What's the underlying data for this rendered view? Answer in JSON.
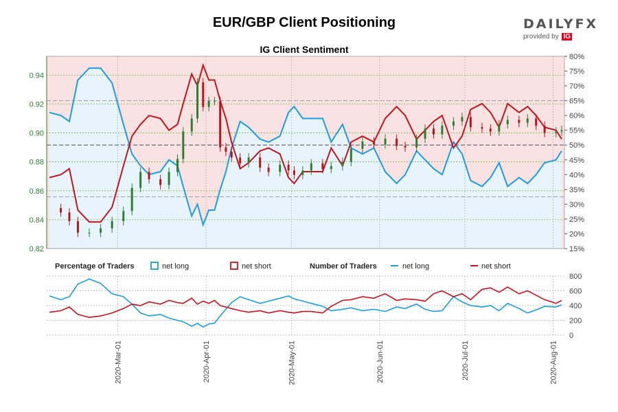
{
  "header": {
    "title": "EUR/GBP Client Positioning",
    "logo_text": "DAILYFX",
    "logo_sub": "provided by",
    "logo_ig": "IG"
  },
  "colors": {
    "long": "#1e9bdc",
    "short": "#c0141e",
    "candle_up": "#2e7d32",
    "candle_down": "#b5161c",
    "long_fill": "#e8f4fb",
    "short_fill": "#fbe2e2",
    "grid": "#7ab648",
    "left_axis": "#2e7d32"
  },
  "chart_data": [
    {
      "type": "candlestick_with_sentiment",
      "title": "IG Client Sentiment",
      "pair": "EUR/GBP",
      "y_left_ticks": [
        0.82,
        0.84,
        0.86,
        0.88,
        0.9,
        0.92,
        0.94
      ],
      "y_left_range": [
        0.82,
        0.953
      ],
      "y_right_ticks": [
        "15%",
        "20%",
        "25%",
        "30%",
        "35%",
        "40%",
        "45%",
        "50%",
        "55%",
        "60%",
        "65%",
        "70%",
        "75%",
        "80%"
      ],
      "y_right_range": [
        15,
        80
      ],
      "reference_lines_pct": [
        50,
        65,
        32.5
      ],
      "x_date_range": [
        "2020-02-06",
        "2020-08-04"
      ],
      "x_ticks": [
        "2020-Mar-01",
        "2020-Apr-01",
        "2020-May-01",
        "2020-Jun-01",
        "2020-Jul-01",
        "2020-Aug-01"
      ],
      "close_series": [
        [
          "2020-02-06",
          0.848
        ],
        [
          "2020-02-10",
          0.845
        ],
        [
          "2020-02-13",
          0.839
        ],
        [
          "2020-02-16",
          0.831
        ],
        [
          "2020-02-20",
          0.831
        ],
        [
          "2020-02-24",
          0.834
        ],
        [
          "2020-02-28",
          0.839
        ],
        [
          "2020-03-03",
          0.846
        ],
        [
          "2020-03-06",
          0.862
        ],
        [
          "2020-03-09",
          0.873
        ],
        [
          "2020-03-12",
          0.868
        ],
        [
          "2020-03-16",
          0.864
        ],
        [
          "2020-03-19",
          0.873
        ],
        [
          "2020-03-22",
          0.882
        ],
        [
          "2020-03-24",
          0.901
        ],
        [
          "2020-03-27",
          0.91
        ],
        [
          "2020-03-29",
          0.935
        ],
        [
          "2020-03-31",
          0.918
        ],
        [
          "2020-04-02",
          0.922
        ],
        [
          "2020-04-04",
          0.922
        ],
        [
          "2020-04-06",
          0.89
        ],
        [
          "2020-04-08",
          0.887
        ],
        [
          "2020-04-10",
          0.883
        ],
        [
          "2020-04-13",
          0.879
        ],
        [
          "2020-04-16",
          0.883
        ],
        [
          "2020-04-20",
          0.876
        ],
        [
          "2020-04-23",
          0.873
        ],
        [
          "2020-04-27",
          0.878
        ],
        [
          "2020-04-30",
          0.874
        ],
        [
          "2020-05-02",
          0.871
        ],
        [
          "2020-05-05",
          0.874
        ],
        [
          "2020-05-08",
          0.879
        ],
        [
          "2020-05-12",
          0.875
        ],
        [
          "2020-05-15",
          0.877
        ],
        [
          "2020-05-19",
          0.88
        ],
        [
          "2020-05-22",
          0.889
        ],
        [
          "2020-05-26",
          0.894
        ],
        [
          "2020-05-30",
          0.892
        ],
        [
          "2020-06-03",
          0.896
        ],
        [
          "2020-06-07",
          0.891
        ],
        [
          "2020-06-10",
          0.89
        ],
        [
          "2020-06-14",
          0.896
        ],
        [
          "2020-06-17",
          0.903
        ],
        [
          "2020-06-20",
          0.899
        ],
        [
          "2020-06-23",
          0.905
        ],
        [
          "2020-06-27",
          0.908
        ],
        [
          "2020-06-30",
          0.911
        ],
        [
          "2020-07-03",
          0.904
        ],
        [
          "2020-07-07",
          0.903
        ],
        [
          "2020-07-10",
          0.901
        ],
        [
          "2020-07-13",
          0.906
        ],
        [
          "2020-07-16",
          0.909
        ],
        [
          "2020-07-20",
          0.907
        ],
        [
          "2020-07-23",
          0.91
        ],
        [
          "2020-07-26",
          0.905
        ],
        [
          "2020-07-29",
          0.9
        ],
        [
          "2020-08-02",
          0.901
        ],
        [
          "2020-08-04",
          0.902
        ]
      ],
      "net_long_pct_series": [
        [
          "2020-02-06",
          61
        ],
        [
          "2020-02-10",
          60
        ],
        [
          "2020-02-13",
          58
        ],
        [
          "2020-02-16",
          72
        ],
        [
          "2020-02-20",
          76
        ],
        [
          "2020-02-24",
          76
        ],
        [
          "2020-02-28",
          71
        ],
        [
          "2020-03-03",
          57
        ],
        [
          "2020-03-06",
          47
        ],
        [
          "2020-03-09",
          43
        ],
        [
          "2020-03-12",
          40
        ],
        [
          "2020-03-16",
          41
        ],
        [
          "2020-03-19",
          45
        ],
        [
          "2020-03-22",
          43
        ],
        [
          "2020-03-24",
          36
        ],
        [
          "2020-03-27",
          26
        ],
        [
          "2020-03-29",
          30
        ],
        [
          "2020-03-31",
          23
        ],
        [
          "2020-04-02",
          28
        ],
        [
          "2020-04-04",
          28
        ],
        [
          "2020-04-06",
          35
        ],
        [
          "2020-04-08",
          41
        ],
        [
          "2020-04-10",
          49
        ],
        [
          "2020-04-13",
          58
        ],
        [
          "2020-04-16",
          56
        ],
        [
          "2020-04-20",
          52
        ],
        [
          "2020-04-23",
          51
        ],
        [
          "2020-04-27",
          53
        ],
        [
          "2020-04-30",
          61
        ],
        [
          "2020-05-02",
          63
        ],
        [
          "2020-05-05",
          59
        ],
        [
          "2020-05-08",
          59
        ],
        [
          "2020-05-12",
          59
        ],
        [
          "2020-05-15",
          51
        ],
        [
          "2020-05-19",
          57
        ],
        [
          "2020-05-22",
          49
        ],
        [
          "2020-05-26",
          47
        ],
        [
          "2020-05-30",
          49
        ],
        [
          "2020-06-03",
          41
        ],
        [
          "2020-06-07",
          37
        ],
        [
          "2020-06-10",
          40
        ],
        [
          "2020-06-14",
          48
        ],
        [
          "2020-06-17",
          45
        ],
        [
          "2020-06-20",
          42
        ],
        [
          "2020-06-23",
          40
        ],
        [
          "2020-06-27",
          51
        ],
        [
          "2020-06-30",
          47
        ],
        [
          "2020-07-03",
          38
        ],
        [
          "2020-07-07",
          36
        ],
        [
          "2020-07-10",
          39
        ],
        [
          "2020-07-13",
          44
        ],
        [
          "2020-07-16",
          36
        ],
        [
          "2020-07-20",
          39
        ],
        [
          "2020-07-23",
          37
        ],
        [
          "2020-07-26",
          40
        ],
        [
          "2020-07-29",
          44
        ],
        [
          "2020-08-02",
          45
        ],
        [
          "2020-08-04",
          48
        ]
      ],
      "net_short_pct_series": [
        [
          "2020-02-06",
          39
        ],
        [
          "2020-02-10",
          40
        ],
        [
          "2020-02-13",
          42
        ],
        [
          "2020-02-16",
          28
        ],
        [
          "2020-02-20",
          24
        ],
        [
          "2020-02-24",
          24
        ],
        [
          "2020-02-28",
          29
        ],
        [
          "2020-03-03",
          43
        ],
        [
          "2020-03-06",
          53
        ],
        [
          "2020-03-09",
          57
        ],
        [
          "2020-03-12",
          60
        ],
        [
          "2020-03-16",
          59
        ],
        [
          "2020-03-19",
          55
        ],
        [
          "2020-03-22",
          57
        ],
        [
          "2020-03-24",
          64
        ],
        [
          "2020-03-27",
          74
        ],
        [
          "2020-03-29",
          70
        ],
        [
          "2020-03-31",
          77
        ],
        [
          "2020-04-02",
          72
        ],
        [
          "2020-04-04",
          72
        ],
        [
          "2020-04-06",
          65
        ],
        [
          "2020-04-08",
          59
        ],
        [
          "2020-04-10",
          51
        ],
        [
          "2020-04-13",
          42
        ],
        [
          "2020-04-16",
          44
        ],
        [
          "2020-04-20",
          48
        ],
        [
          "2020-04-23",
          49
        ],
        [
          "2020-04-27",
          47
        ],
        [
          "2020-04-30",
          39
        ],
        [
          "2020-05-02",
          37
        ],
        [
          "2020-05-05",
          41
        ],
        [
          "2020-05-08",
          41
        ],
        [
          "2020-05-12",
          41
        ],
        [
          "2020-05-15",
          49
        ],
        [
          "2020-05-19",
          43
        ],
        [
          "2020-05-22",
          51
        ],
        [
          "2020-05-26",
          53
        ],
        [
          "2020-05-30",
          51
        ],
        [
          "2020-06-03",
          59
        ],
        [
          "2020-06-07",
          63
        ],
        [
          "2020-06-10",
          60
        ],
        [
          "2020-06-14",
          52
        ],
        [
          "2020-06-17",
          55
        ],
        [
          "2020-06-20",
          58
        ],
        [
          "2020-06-23",
          60
        ],
        [
          "2020-06-27",
          49
        ],
        [
          "2020-06-30",
          53
        ],
        [
          "2020-07-03",
          62
        ],
        [
          "2020-07-07",
          64
        ],
        [
          "2020-07-10",
          61
        ],
        [
          "2020-07-13",
          56
        ],
        [
          "2020-07-16",
          64
        ],
        [
          "2020-07-20",
          61
        ],
        [
          "2020-07-23",
          63
        ],
        [
          "2020-07-26",
          60
        ],
        [
          "2020-07-29",
          56
        ],
        [
          "2020-08-02",
          55
        ],
        [
          "2020-08-04",
          52
        ]
      ]
    },
    {
      "type": "line",
      "y_ticks": [
        0,
        200,
        400,
        600,
        800
      ],
      "y_range": [
        0,
        800
      ],
      "legend": {
        "pct_title": "Percentage of Traders",
        "pct_long": "net long",
        "pct_short": "net short",
        "num_title": "Number of Traders",
        "num_long": "net long",
        "num_short": "net short"
      },
      "net_long_count_series": [
        [
          "2020-02-06",
          530
        ],
        [
          "2020-02-10",
          480
        ],
        [
          "2020-02-13",
          520
        ],
        [
          "2020-02-16",
          690
        ],
        [
          "2020-02-20",
          760
        ],
        [
          "2020-02-24",
          700
        ],
        [
          "2020-02-28",
          560
        ],
        [
          "2020-03-03",
          520
        ],
        [
          "2020-03-06",
          420
        ],
        [
          "2020-03-09",
          300
        ],
        [
          "2020-03-12",
          260
        ],
        [
          "2020-03-16",
          280
        ],
        [
          "2020-03-19",
          230
        ],
        [
          "2020-03-22",
          200
        ],
        [
          "2020-03-24",
          180
        ],
        [
          "2020-03-27",
          120
        ],
        [
          "2020-03-29",
          160
        ],
        [
          "2020-03-31",
          110
        ],
        [
          "2020-04-02",
          150
        ],
        [
          "2020-04-04",
          160
        ],
        [
          "2020-04-06",
          260
        ],
        [
          "2020-04-08",
          350
        ],
        [
          "2020-04-10",
          440
        ],
        [
          "2020-04-13",
          520
        ],
        [
          "2020-04-16",
          480
        ],
        [
          "2020-04-20",
          430
        ],
        [
          "2020-04-23",
          460
        ],
        [
          "2020-04-27",
          500
        ],
        [
          "2020-04-30",
          530
        ],
        [
          "2020-05-02",
          490
        ],
        [
          "2020-05-05",
          460
        ],
        [
          "2020-05-08",
          430
        ],
        [
          "2020-05-12",
          390
        ],
        [
          "2020-05-15",
          330
        ],
        [
          "2020-05-19",
          350
        ],
        [
          "2020-05-22",
          370
        ],
        [
          "2020-05-26",
          330
        ],
        [
          "2020-05-30",
          350
        ],
        [
          "2020-06-03",
          320
        ],
        [
          "2020-06-07",
          380
        ],
        [
          "2020-06-10",
          360
        ],
        [
          "2020-06-14",
          420
        ],
        [
          "2020-06-17",
          350
        ],
        [
          "2020-06-20",
          320
        ],
        [
          "2020-06-23",
          330
        ],
        [
          "2020-06-27",
          520
        ],
        [
          "2020-06-30",
          450
        ],
        [
          "2020-07-03",
          400
        ],
        [
          "2020-07-07",
          380
        ],
        [
          "2020-07-10",
          400
        ],
        [
          "2020-07-13",
          330
        ],
        [
          "2020-07-16",
          430
        ],
        [
          "2020-07-20",
          360
        ],
        [
          "2020-07-23",
          300
        ],
        [
          "2020-07-26",
          340
        ],
        [
          "2020-07-29",
          390
        ],
        [
          "2020-08-02",
          380
        ],
        [
          "2020-08-04",
          410
        ]
      ],
      "net_short_count_series": [
        [
          "2020-02-06",
          310
        ],
        [
          "2020-02-10",
          330
        ],
        [
          "2020-02-13",
          380
        ],
        [
          "2020-02-16",
          280
        ],
        [
          "2020-02-20",
          240
        ],
        [
          "2020-02-24",
          260
        ],
        [
          "2020-02-28",
          300
        ],
        [
          "2020-03-03",
          360
        ],
        [
          "2020-03-06",
          420
        ],
        [
          "2020-03-09",
          400
        ],
        [
          "2020-03-12",
          450
        ],
        [
          "2020-03-16",
          420
        ],
        [
          "2020-03-19",
          470
        ],
        [
          "2020-03-22",
          440
        ],
        [
          "2020-03-24",
          430
        ],
        [
          "2020-03-27",
          500
        ],
        [
          "2020-03-29",
          420
        ],
        [
          "2020-03-31",
          460
        ],
        [
          "2020-04-02",
          430
        ],
        [
          "2020-04-04",
          470
        ],
        [
          "2020-04-06",
          400
        ],
        [
          "2020-04-08",
          380
        ],
        [
          "2020-04-10",
          360
        ],
        [
          "2020-04-13",
          330
        ],
        [
          "2020-04-16",
          310
        ],
        [
          "2020-04-20",
          330
        ],
        [
          "2020-04-23",
          300
        ],
        [
          "2020-04-27",
          330
        ],
        [
          "2020-04-30",
          310
        ],
        [
          "2020-05-02",
          300
        ],
        [
          "2020-05-05",
          320
        ],
        [
          "2020-05-08",
          320
        ],
        [
          "2020-05-12",
          300
        ],
        [
          "2020-05-15",
          390
        ],
        [
          "2020-05-19",
          470
        ],
        [
          "2020-05-22",
          480
        ],
        [
          "2020-05-26",
          520
        ],
        [
          "2020-05-30",
          500
        ],
        [
          "2020-06-03",
          560
        ],
        [
          "2020-06-07",
          470
        ],
        [
          "2020-06-10",
          490
        ],
        [
          "2020-06-14",
          480
        ],
        [
          "2020-06-17",
          460
        ],
        [
          "2020-06-20",
          560
        ],
        [
          "2020-06-23",
          600
        ],
        [
          "2020-06-27",
          520
        ],
        [
          "2020-06-30",
          560
        ],
        [
          "2020-07-03",
          480
        ],
        [
          "2020-07-07",
          620
        ],
        [
          "2020-07-10",
          640
        ],
        [
          "2020-07-13",
          580
        ],
        [
          "2020-07-16",
          650
        ],
        [
          "2020-07-20",
          560
        ],
        [
          "2020-07-23",
          600
        ],
        [
          "2020-07-26",
          540
        ],
        [
          "2020-07-29",
          480
        ],
        [
          "2020-08-02",
          430
        ],
        [
          "2020-08-04",
          470
        ]
      ]
    }
  ]
}
